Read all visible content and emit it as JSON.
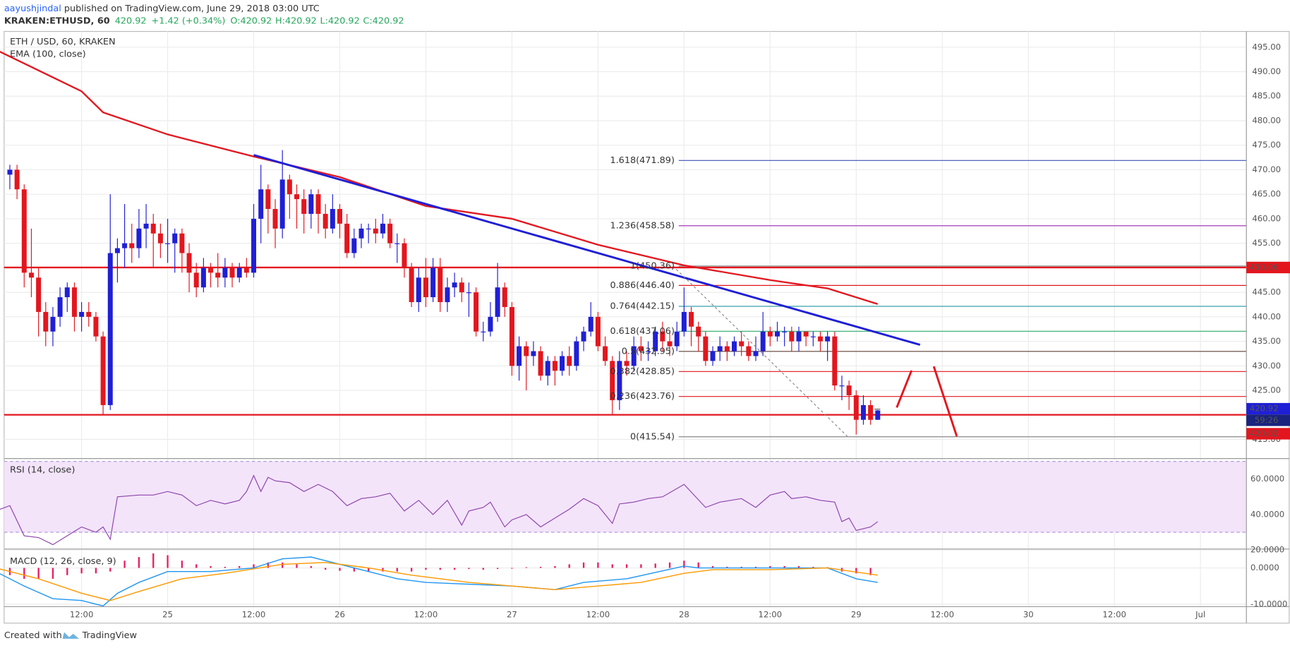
{
  "header": {
    "user": "aayushjindal",
    "published": " published on TradingView.com, June 29, 2018 03:00 UTC",
    "symbol": "KRAKEN:ETHUSD, 60",
    "last": "420.92",
    "change": "+1.42 (+0.34%)",
    "o": "O:420.92",
    "h": "H:420.92",
    "l": "L:420.92",
    "c": "C:420.92"
  },
  "chart_data": {
    "type": "candlestick",
    "title": "ETH / USD, 60, KRAKEN",
    "indicator": "EMA (100, close)",
    "xlim": [
      1.2,
      174.4
    ],
    "xticks": [
      {
        "value": 12,
        "label": "12:00"
      },
      {
        "value": 24,
        "label": "25"
      },
      {
        "value": 36,
        "label": "12:00"
      },
      {
        "value": 48,
        "label": "26"
      },
      {
        "value": 60,
        "label": "12:00"
      },
      {
        "value": 72,
        "label": "27"
      },
      {
        "value": 84,
        "label": "12:00"
      },
      {
        "value": 96,
        "label": "28"
      },
      {
        "value": 108,
        "label": "12:00"
      },
      {
        "value": 120,
        "label": "29"
      },
      {
        "value": 132,
        "label": "12:00"
      },
      {
        "value": 144,
        "label": "30"
      },
      {
        "value": 156,
        "label": "12:00"
      },
      {
        "value": 168,
        "label": "Jul"
      }
    ],
    "ylim": [
      411.1,
      498.2
    ],
    "yticks": [
      {
        "value": 415,
        "label": "415.00"
      },
      {
        "value": 420,
        "label": "420.00"
      },
      {
        "value": 425,
        "label": "425.00"
      },
      {
        "value": 430,
        "label": "430.00"
      },
      {
        "value": 435,
        "label": "435.00"
      },
      {
        "value": 440,
        "label": "440.00"
      },
      {
        "value": 445,
        "label": "445.00"
      },
      {
        "value": 450,
        "label": "450.00"
      },
      {
        "value": 455,
        "label": "455.00"
      },
      {
        "value": 460,
        "label": "460.00"
      },
      {
        "value": 465,
        "label": "465.00"
      },
      {
        "value": 470,
        "label": "470.00"
      },
      {
        "value": 475,
        "label": "475.00"
      },
      {
        "value": 480,
        "label": "480.00"
      },
      {
        "value": 485,
        "label": "485.00"
      },
      {
        "value": 490,
        "label": "490.00"
      },
      {
        "value": 495,
        "label": "495.00"
      }
    ],
    "up_color": "#1f1fd6",
    "down_color": "#e3161e",
    "candles": [
      [
        2,
        469,
        471,
        466,
        470
      ],
      [
        3,
        470,
        471,
        464,
        466
      ],
      [
        4,
        466,
        467,
        446,
        449
      ],
      [
        5,
        449,
        458,
        444,
        448
      ],
      [
        6,
        448,
        450,
        436,
        441
      ],
      [
        7,
        441,
        443,
        434,
        437
      ],
      [
        8,
        437,
        442,
        434,
        440
      ],
      [
        9,
        440,
        446,
        438,
        444
      ],
      [
        10,
        444,
        447,
        441,
        446
      ],
      [
        11,
        446,
        447,
        437,
        440
      ],
      [
        12,
        440,
        443,
        437,
        441
      ],
      [
        13,
        441,
        443,
        438,
        440
      ],
      [
        14,
        440,
        441,
        435,
        436
      ],
      [
        15,
        436,
        437,
        420,
        422
      ],
      [
        16,
        422,
        465,
        421,
        453
      ],
      [
        17,
        453,
        456,
        447,
        454
      ],
      [
        18,
        454,
        463,
        450,
        455
      ],
      [
        19,
        455,
        459,
        451,
        454
      ],
      [
        20,
        454,
        462,
        452,
        458
      ],
      [
        21,
        458,
        463,
        454,
        459
      ],
      [
        22,
        459,
        461,
        450,
        457
      ],
      [
        23,
        457,
        459,
        452,
        455
      ],
      [
        24,
        455,
        460,
        451,
        455
      ],
      [
        25,
        455,
        458,
        449,
        457
      ],
      [
        26,
        457,
        458,
        449,
        453
      ],
      [
        27,
        453,
        455,
        445,
        449
      ],
      [
        28,
        449,
        451,
        444,
        446
      ],
      [
        29,
        446,
        452,
        445,
        450
      ],
      [
        30,
        450,
        451,
        446,
        449
      ],
      [
        31,
        449,
        453,
        446,
        448
      ],
      [
        32,
        448,
        452,
        446,
        450
      ],
      [
        33,
        450,
        451,
        446,
        448
      ],
      [
        34,
        448,
        451,
        447,
        450
      ],
      [
        35,
        450,
        452,
        448,
        449
      ],
      [
        36,
        449,
        463,
        448,
        460
      ],
      [
        37,
        460,
        471,
        455,
        466
      ],
      [
        38,
        466,
        467,
        457,
        462
      ],
      [
        39,
        462,
        464,
        454,
        458
      ],
      [
        40,
        458,
        474,
        456,
        468
      ],
      [
        41,
        468,
        469,
        460,
        465
      ],
      [
        42,
        465,
        467,
        458,
        464
      ],
      [
        43,
        464,
        466,
        457,
        461
      ],
      [
        44,
        461,
        466,
        458,
        465
      ],
      [
        45,
        465,
        466,
        457,
        461
      ],
      [
        46,
        461,
        463,
        456,
        458
      ],
      [
        47,
        458,
        465,
        457,
        462
      ],
      [
        48,
        462,
        463,
        456,
        459
      ],
      [
        49,
        459,
        461,
        452,
        453
      ],
      [
        50,
        453,
        458,
        452,
        456
      ],
      [
        51,
        456,
        459,
        454,
        458
      ],
      [
        52,
        458,
        459,
        455,
        458
      ],
      [
        53,
        458,
        460,
        455,
        457
      ],
      [
        54,
        457,
        461,
        456,
        459
      ],
      [
        55,
        459,
        460,
        454,
        455
      ],
      [
        56,
        455,
        457,
        451,
        455
      ],
      [
        57,
        455,
        456,
        448,
        450
      ],
      [
        58,
        450,
        451,
        442,
        443
      ],
      [
        59,
        443,
        450,
        441,
        448
      ],
      [
        60,
        448,
        452,
        442,
        444
      ],
      [
        61,
        444,
        452,
        443,
        450
      ],
      [
        62,
        450,
        452,
        441,
        443
      ],
      [
        63,
        443,
        448,
        441,
        446
      ],
      [
        64,
        446,
        449,
        444,
        447
      ],
      [
        65,
        447,
        448,
        443,
        445
      ],
      [
        66,
        445,
        447,
        440,
        445
      ],
      [
        67,
        445,
        446,
        436,
        437
      ],
      [
        68,
        437,
        439,
        435,
        437
      ],
      [
        69,
        437,
        443,
        436,
        440
      ],
      [
        70,
        440,
        451,
        439,
        446
      ],
      [
        71,
        446,
        447,
        440,
        442
      ],
      [
        72,
        442,
        443,
        428,
        430
      ],
      [
        73,
        430,
        436,
        427,
        434
      ],
      [
        74,
        434,
        435,
        425,
        432
      ],
      [
        75,
        432,
        435,
        430,
        433
      ],
      [
        76,
        433,
        434,
        427,
        428
      ],
      [
        77,
        428,
        432,
        426,
        431
      ],
      [
        78,
        431,
        432,
        426,
        429
      ],
      [
        79,
        429,
        433,
        428,
        432
      ],
      [
        80,
        432,
        434,
        428,
        430
      ],
      [
        81,
        430,
        436,
        429,
        435
      ],
      [
        82,
        435,
        438,
        433,
        437
      ],
      [
        83,
        437,
        443,
        436,
        440
      ],
      [
        84,
        440,
        441,
        433,
        434
      ],
      [
        85,
        434,
        436,
        430,
        431
      ],
      [
        86,
        431,
        432,
        420,
        423
      ],
      [
        87,
        423,
        433,
        421,
        431
      ],
      [
        88,
        431,
        433,
        428,
        430
      ],
      [
        89,
        430,
        436,
        429,
        434
      ],
      [
        90,
        434,
        436,
        431,
        433
      ],
      [
        91,
        433,
        435,
        431,
        433
      ],
      [
        92,
        433,
        438,
        432,
        437
      ],
      [
        93,
        437,
        439,
        433,
        435
      ],
      [
        94,
        435,
        437,
        432,
        434
      ],
      [
        95,
        434,
        439,
        433,
        437
      ],
      [
        96,
        437,
        446,
        436,
        441
      ],
      [
        97,
        441,
        442,
        434,
        438
      ],
      [
        98,
        438,
        439,
        433,
        436
      ],
      [
        99,
        436,
        437,
        430,
        431
      ],
      [
        100,
        431,
        434,
        430,
        433
      ],
      [
        101,
        433,
        436,
        431,
        434
      ],
      [
        102,
        434,
        435,
        431,
        433
      ],
      [
        103,
        433,
        436,
        432,
        435
      ],
      [
        104,
        435,
        437,
        432,
        434
      ],
      [
        105,
        434,
        435,
        431,
        432
      ],
      [
        106,
        432,
        436,
        431,
        433
      ],
      [
        107,
        433,
        441,
        432,
        437
      ],
      [
        108,
        437,
        438,
        434,
        436
      ],
      [
        109,
        436,
        439,
        435,
        437
      ],
      [
        110,
        437,
        438,
        434,
        437
      ],
      [
        111,
        437,
        438,
        433,
        435
      ],
      [
        112,
        435,
        438,
        433,
        437
      ],
      [
        113,
        437,
        437,
        434,
        436
      ],
      [
        114,
        436,
        437,
        434,
        436
      ],
      [
        115,
        436,
        437,
        433,
        435
      ],
      [
        116,
        435,
        437,
        431,
        436
      ],
      [
        117,
        436,
        437,
        425,
        426
      ],
      [
        118,
        426,
        428,
        423,
        426
      ],
      [
        119,
        426,
        427,
        421,
        424
      ],
      [
        120,
        424,
        425,
        416,
        419
      ],
      [
        121,
        419,
        424,
        418,
        422
      ],
      [
        122,
        422,
        423,
        418,
        419
      ],
      [
        123,
        419,
        421,
        419,
        420.92
      ]
    ],
    "ema": {
      "color": "#e3161e",
      "x": [
        0,
        12,
        15,
        24,
        36,
        48,
        60,
        72,
        84,
        96,
        108,
        116,
        123
      ],
      "values": [
        494.5,
        486,
        481.7,
        477.2,
        472.7,
        468.5,
        462.6,
        460,
        454.7,
        450.5,
        447.5,
        445.8,
        442.6
      ]
    },
    "trendline": {
      "color": "#1f1fd6",
      "x": [
        36,
        128.9
      ],
      "values": [
        473,
        434.3
      ]
    },
    "hlines": [
      {
        "value": 450.06,
        "label": "450.06",
        "color": "#e3161e"
      },
      {
        "value": 420.02,
        "label": "420.02",
        "color": "#e3161e"
      }
    ],
    "last_price": {
      "value": 420.92,
      "label": "420.92",
      "color": "#1f1fd6"
    },
    "countdown": "59:26",
    "fib": [
      {
        "value": 471.89,
        "label": "1.618(471.89)",
        "color": "#3f51b5"
      },
      {
        "value": 458.58,
        "label": "1.236(458.58)",
        "color": "#9c27b0"
      },
      {
        "value": 450.36,
        "label": "1(450.36)",
        "color": "#888888"
      },
      {
        "value": 446.4,
        "label": "0.886(446.40)",
        "color": "#e3161e"
      },
      {
        "value": 442.15,
        "label": "0.764(442.15)",
        "color": "#2196a3"
      },
      {
        "value": 437.06,
        "label": "0.618(437.06)",
        "color": "#2eaa6a"
      },
      {
        "value": 432.95,
        "label": "0.5(432.95)",
        "color": "#5d4037"
      },
      {
        "value": 428.85,
        "label": "0.382(428.85)",
        "color": "#e3161e"
      },
      {
        "value": 423.76,
        "label": "0.236(423.76)",
        "color": "#e3161e"
      },
      {
        "value": 415.54,
        "label": "0(415.54)",
        "color": "#888888"
      }
    ],
    "rsi": {
      "title": "RSI (14, close)",
      "color": "#8e44ad",
      "ylim": [
        20.5,
        71.6
      ],
      "band": [
        30,
        70
      ],
      "yticks": [
        {
          "value": 20,
          "label": "20.0000"
        },
        {
          "value": 40,
          "label": "40.0000"
        },
        {
          "value": 60,
          "label": "60.0000"
        }
      ],
      "x": [
        0,
        2,
        4,
        6,
        8,
        10,
        12,
        14,
        15,
        16,
        17,
        20,
        22,
        24,
        26,
        28,
        30,
        32,
        34,
        35,
        36,
        37,
        38,
        39,
        41,
        43,
        45,
        47,
        49,
        51,
        53,
        55,
        57,
        59,
        61,
        63,
        65,
        66,
        68,
        69,
        71,
        72,
        74,
        76,
        78,
        80,
        82,
        84,
        86,
        87,
        89,
        91,
        93,
        96,
        99,
        101,
        104,
        106,
        108,
        110,
        111,
        113,
        115,
        117,
        118,
        119,
        120,
        122,
        123
      ],
      "values": [
        42,
        45,
        28,
        27,
        23,
        28,
        33,
        30,
        33,
        26,
        50,
        51,
        51,
        53,
        51,
        45,
        48,
        46,
        48,
        53,
        62,
        53,
        61,
        59,
        58,
        53,
        57,
        53,
        45,
        49,
        50,
        52,
        42,
        48,
        40,
        48,
        34,
        42,
        44,
        47,
        33,
        37,
        40,
        33,
        38,
        43,
        49,
        45,
        35,
        46,
        47,
        49,
        50,
        57,
        44,
        47,
        49,
        44,
        51,
        53,
        49,
        50,
        48,
        47,
        36,
        38,
        31,
        33,
        36
      ]
    },
    "macd": {
      "title": "MACD (12, 26, close, 9)",
      "ylim": [
        -10.7,
        5.2
      ],
      "yticks": [
        {
          "value": 0,
          "label": "0.0000"
        },
        {
          "value": -10,
          "label": "-10.0000"
        }
      ],
      "macd_color": "#2196f3",
      "signal_color": "#ff9800",
      "hist_color": "#e91e63",
      "x": [
        0,
        4,
        8,
        12,
        15,
        17,
        20,
        24,
        30,
        36,
        40,
        44,
        48,
        52,
        56,
        60,
        66,
        72,
        78,
        82,
        88,
        96,
        98,
        108,
        116,
        120,
        123
      ],
      "values": [
        -1,
        -5,
        -8.5,
        -9,
        -10.5,
        -7,
        -4,
        -1,
        -1,
        0,
        2.5,
        3,
        1,
        -1,
        -3,
        -4,
        -4.5,
        -5,
        -6,
        -4,
        -3,
        0.5,
        0,
        0,
        0,
        -3,
        -4
      ],
      "signal_x": [
        0,
        6,
        12,
        16,
        20,
        26,
        32,
        40,
        46,
        52,
        58,
        66,
        72,
        78,
        84,
        90,
        96,
        100,
        108,
        116,
        123
      ],
      "signal": [
        0,
        -3,
        -7,
        -9,
        -6.5,
        -3,
        -1.5,
        1,
        1.5,
        0,
        -2,
        -4,
        -5,
        -6,
        -5,
        -4,
        -1.5,
        -0.5,
        -0.5,
        0,
        -2
      ],
      "hist_x": [
        2,
        4,
        6,
        8,
        10,
        12,
        14,
        16,
        18,
        20,
        22,
        24,
        26,
        28,
        30,
        32,
        34,
        36,
        38,
        40,
        42,
        44,
        46,
        48,
        50,
        52,
        54,
        56,
        58,
        60,
        62,
        64,
        66,
        68,
        70,
        72,
        74,
        76,
        78,
        80,
        82,
        84,
        86,
        88,
        90,
        92,
        94,
        96,
        98,
        100,
        102,
        104,
        106,
        108,
        110,
        112,
        114,
        116,
        118,
        120,
        122
      ],
      "hist": [
        -2,
        -3,
        -3,
        -3,
        -2,
        -1.5,
        -1.5,
        -1,
        2,
        3,
        4,
        3.5,
        2,
        1,
        0.5,
        0.3,
        0.5,
        1,
        1.5,
        1.5,
        1,
        0.5,
        -0.5,
        -0.8,
        -1,
        -1,
        -1,
        -1,
        -1,
        -0.5,
        -0.5,
        -0.5,
        -0.3,
        -0.5,
        -0.3,
        -0.2,
        0.2,
        0.3,
        0.5,
        1,
        1.5,
        1.5,
        1,
        1,
        1,
        1.2,
        1.5,
        2,
        1.5,
        0.5,
        0.3,
        0.3,
        0.3,
        0.5,
        0.5,
        0.5,
        0.3,
        0.2,
        -1,
        -1.5,
        -2
      ]
    }
  },
  "footer": {
    "created": "Created with",
    "brand": "TradingView"
  }
}
